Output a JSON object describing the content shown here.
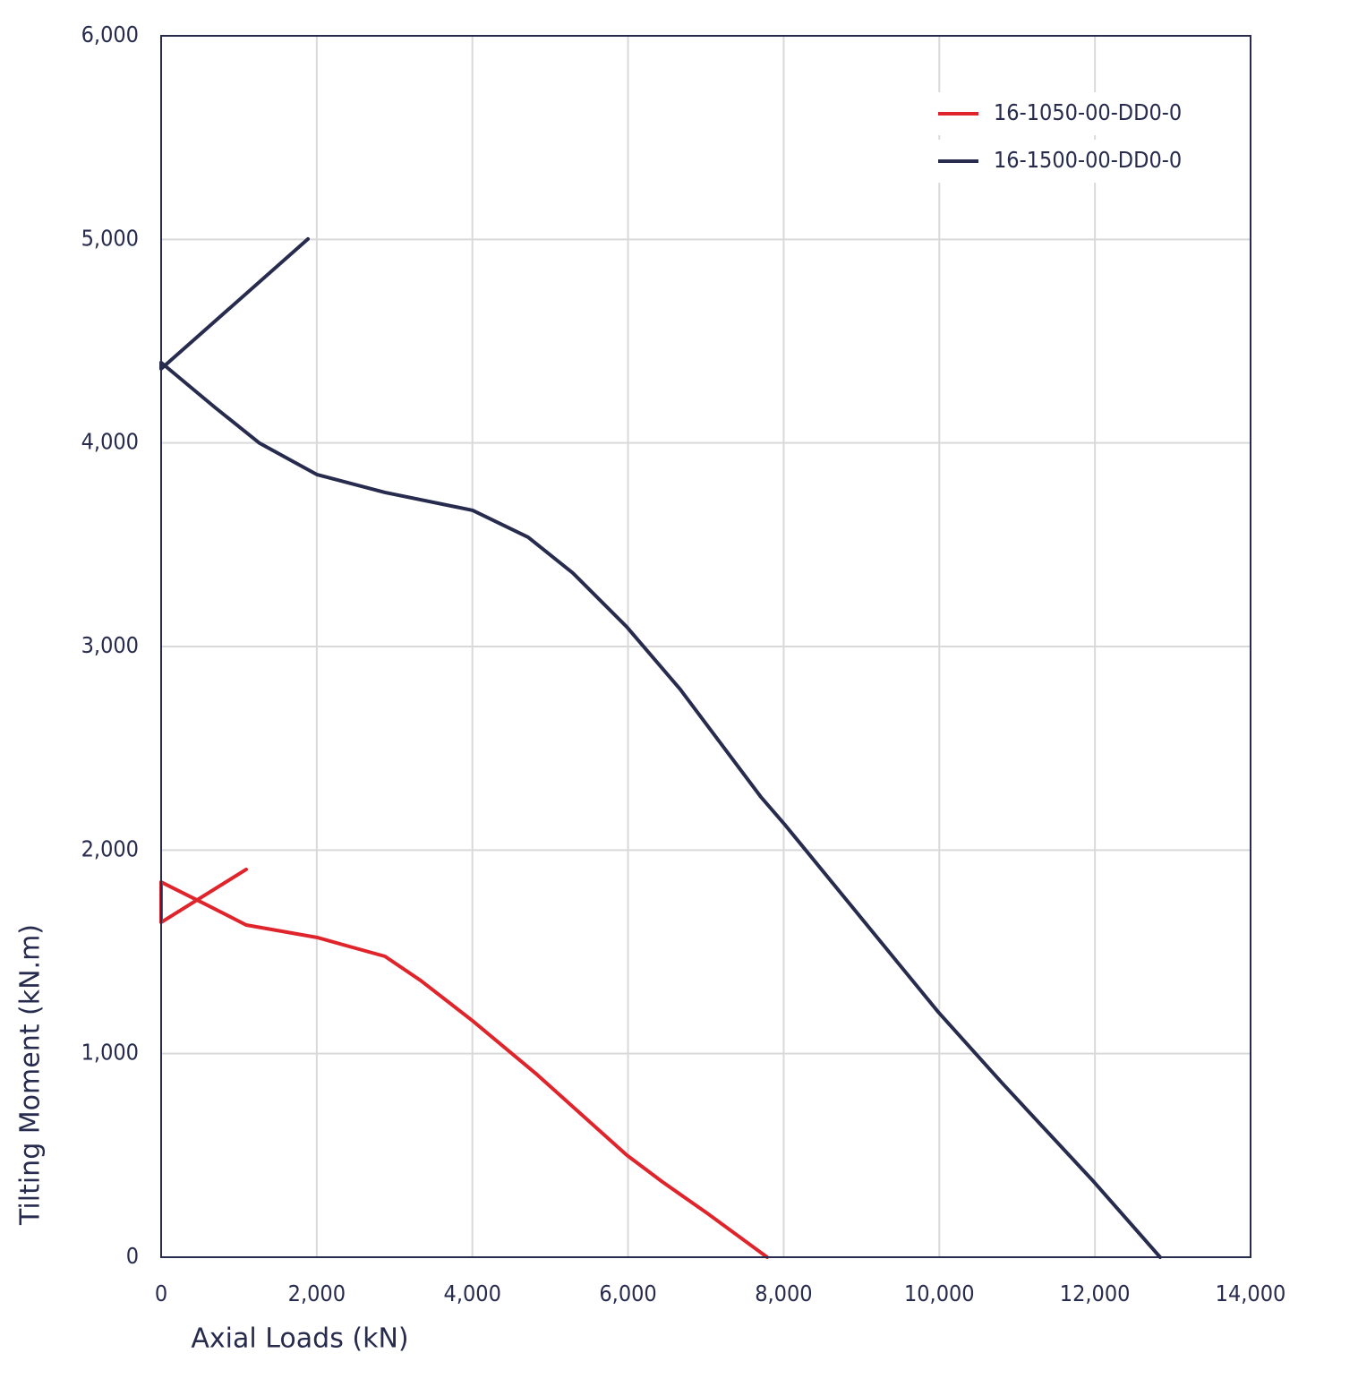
{
  "chart_data": {
    "type": "line",
    "x_label": "Axial Loads (kN)",
    "y_label": "Tilting Moment (kN.m)",
    "series": [
      {
        "name": "16-1050-00-DD0-0",
        "color": "#e0242b",
        "x": [
          1093,
          0,
          0,
          575,
          1093,
          2000,
          2876,
          3336,
          4003,
          4831,
          5982,
          6442,
          7017,
          7788
        ],
        "values": [
          1905,
          1645,
          1843,
          1733,
          1632,
          1571,
          1478,
          1359,
          1161,
          897,
          502,
          370,
          216,
          0
        ]
      },
      {
        "name": "16-1500-00-DD0-0",
        "color": "#272b4d",
        "x": [
          1887,
          0,
          0,
          690,
          1265,
          2000,
          2876,
          4003,
          4716,
          5291,
          5982,
          6672,
          7707,
          8006,
          9985,
          10813,
          11987,
          12838
        ],
        "values": [
          5002,
          4364,
          4395,
          4175,
          3999,
          3845,
          3757,
          3669,
          3537,
          3361,
          3097,
          2789,
          2261,
          2129,
          1205,
          853,
          370,
          0
        ]
      }
    ],
    "xlim": [
      0,
      14000
    ],
    "xticks": [
      0,
      {
        "value": 2000,
        "label": "2,000"
      },
      {
        "value": 4000,
        "label": "4,000"
      },
      {
        "value": 6000,
        "label": "6,000"
      },
      {
        "value": 8000,
        "label": "8,000"
      },
      {
        "value": 10000,
        "label": "10,000"
      },
      {
        "value": 12000,
        "label": "12,000"
      },
      {
        "value": 14000,
        "label": "14,000"
      }
    ],
    "ylim": [
      0,
      6000
    ],
    "yticks": [
      0,
      {
        "value": 1000,
        "label": "1,000"
      },
      {
        "value": 2000,
        "label": "2,000"
      },
      {
        "value": 3000,
        "label": "3,000"
      },
      {
        "value": 4000,
        "label": "4,000"
      },
      {
        "value": 5000,
        "label": "5,000"
      },
      {
        "value": 6000,
        "label": "6,000"
      }
    ],
    "grid": true
  }
}
